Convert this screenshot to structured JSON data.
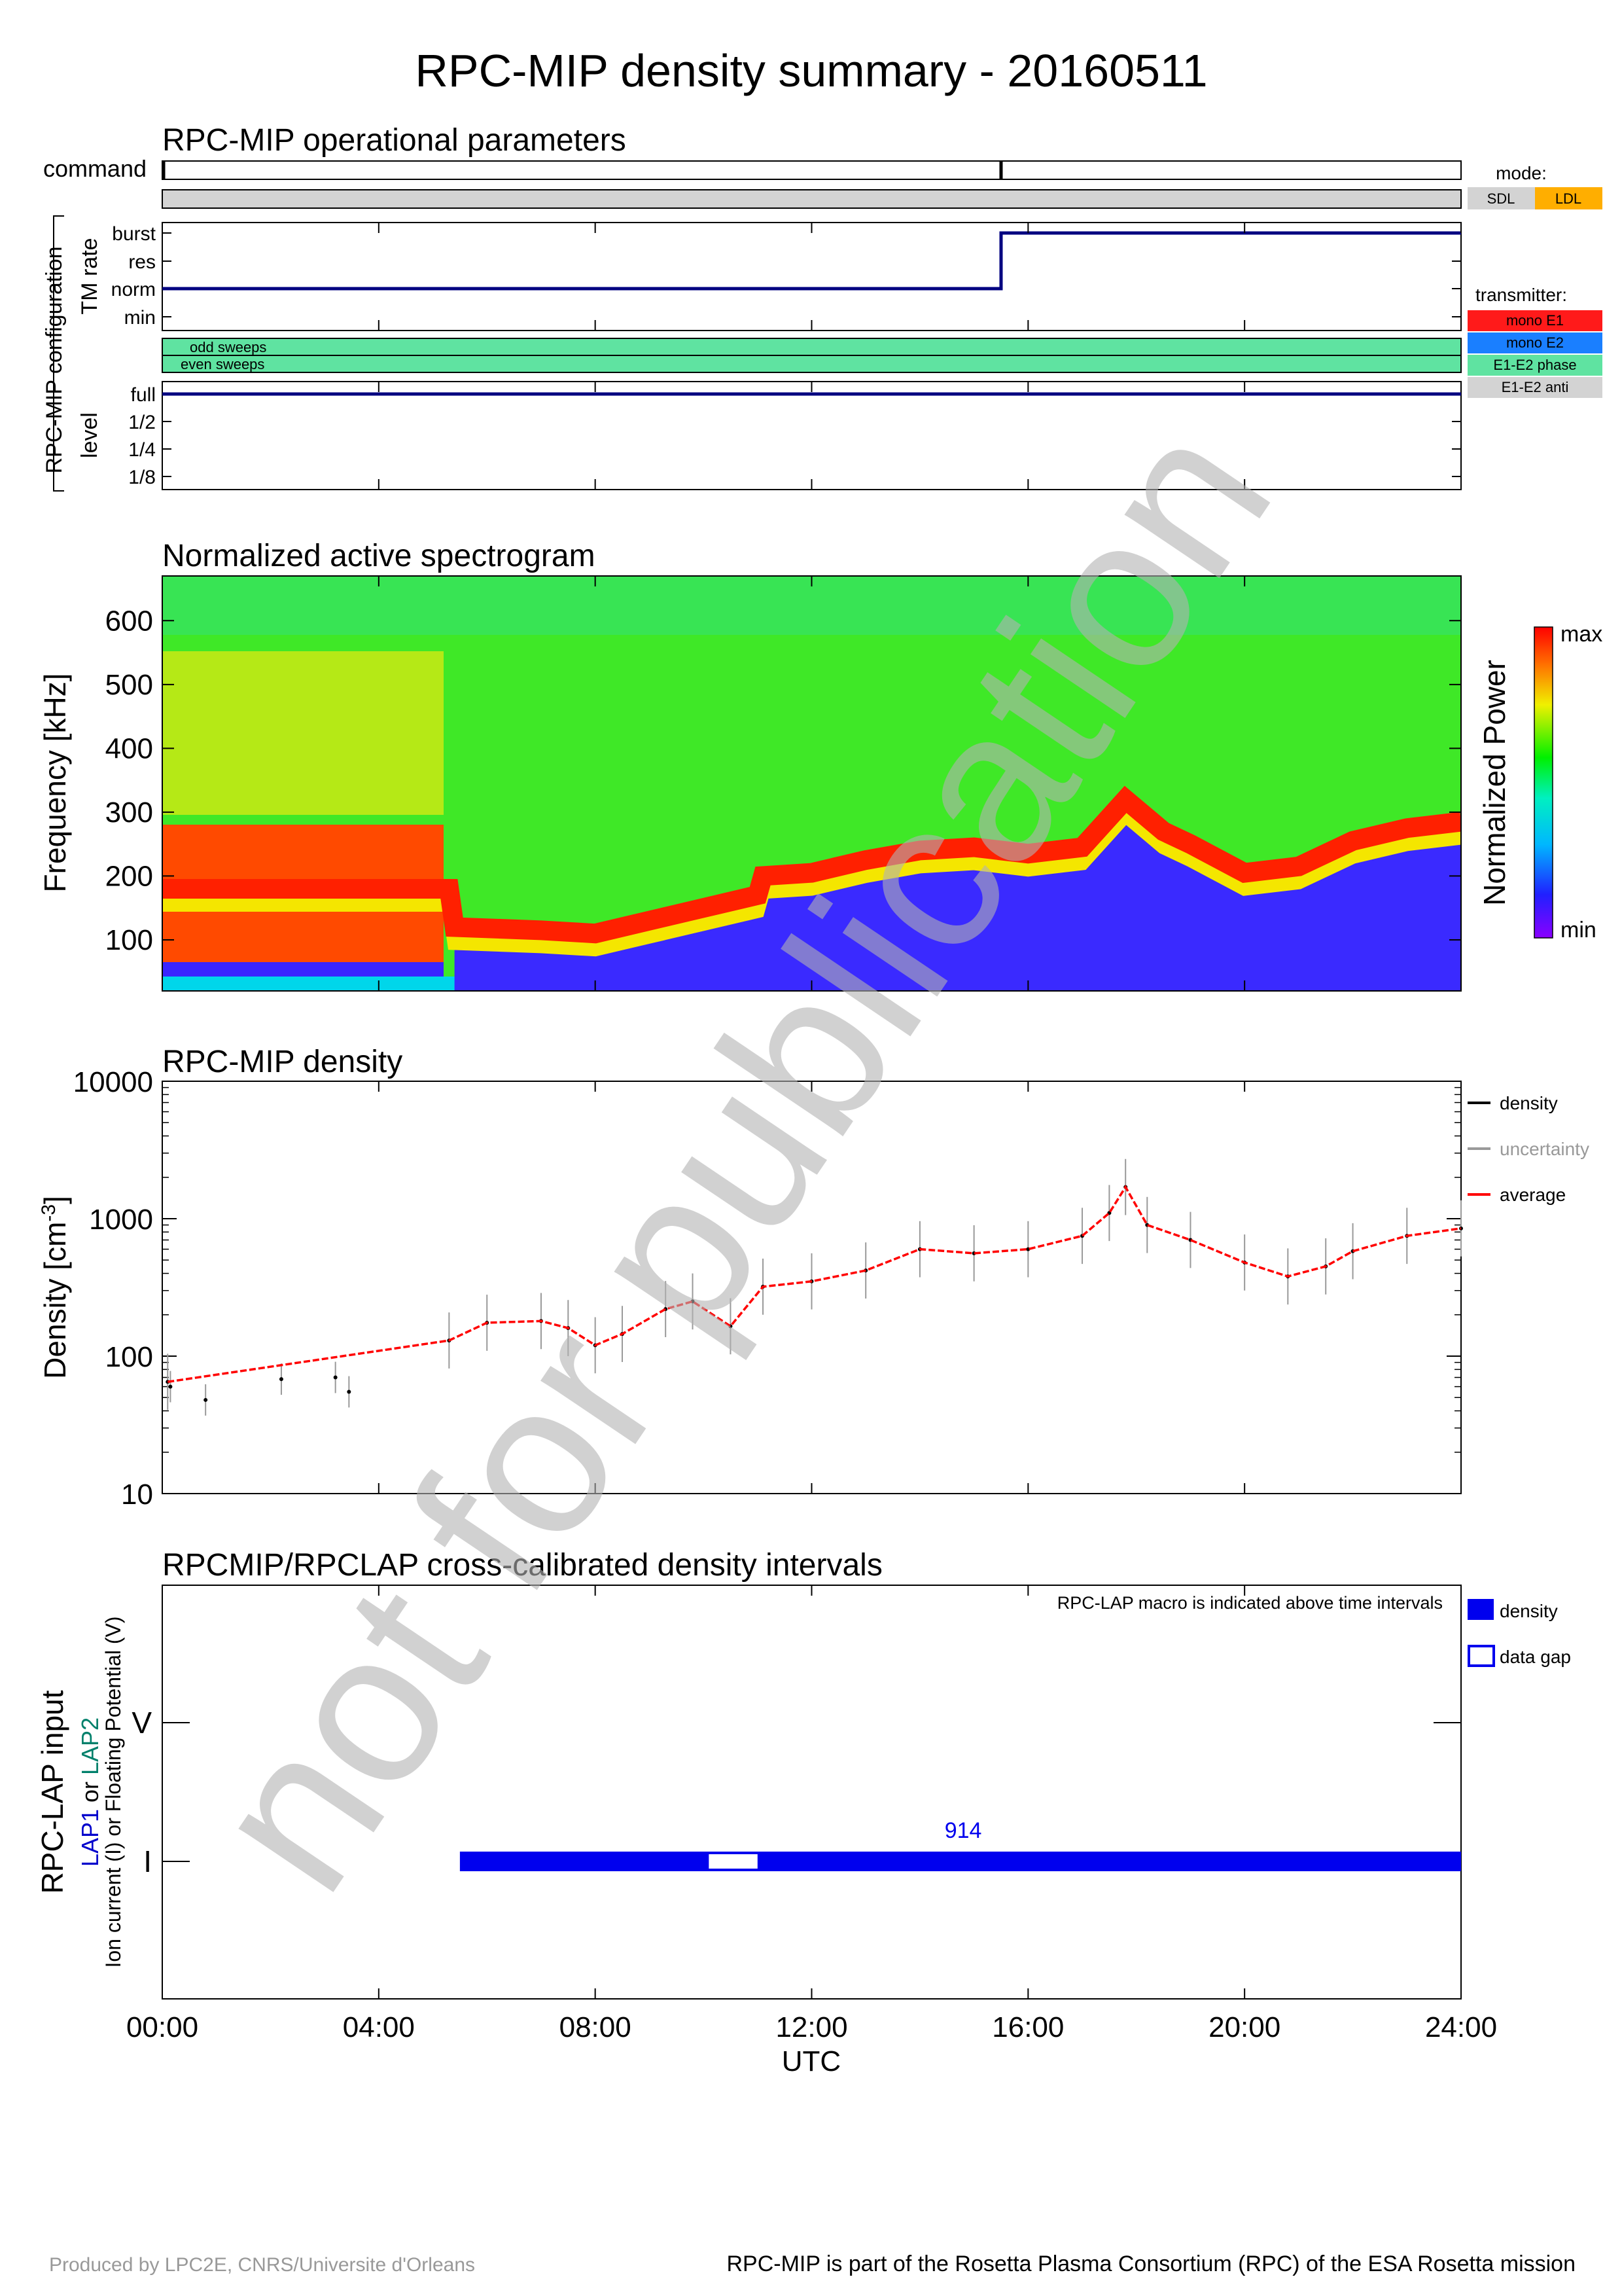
{
  "title": "RPC-MIP density summary - 20160511",
  "footer": {
    "left": "Produced by LPC2E, CNRS/Universite d'Orleans",
    "right": "RPC-MIP is part of the Rosetta Plasma Consortium (RPC) of the ESA Rosetta mission"
  },
  "watermark": "not for publication",
  "x_axis": {
    "ticks": [
      "00:00",
      "04:00",
      "08:00",
      "12:00",
      "16:00",
      "20:00",
      "24:00"
    ],
    "tick_hours": [
      0,
      4,
      8,
      12,
      16,
      20,
      24
    ],
    "label": "UTC",
    "range_hours": [
      0,
      24
    ]
  },
  "ops_panel": {
    "title": "RPC-MIP operational parameters",
    "command_label": "command",
    "command_marks_hours": [
      0,
      15.5
    ],
    "config_label": "RPC-MIP configuration",
    "tm_rate_label": "TM rate",
    "tm_rate_levels": [
      "burst",
      "res",
      "norm",
      "min"
    ],
    "tm_rate_steps": [
      {
        "from": 0,
        "to": 15.5,
        "level": "norm"
      },
      {
        "from": 15.5,
        "to": 24,
        "level": "burst"
      }
    ],
    "sweeps": [
      "odd sweeps",
      "even sweeps"
    ],
    "level_label": "level",
    "level_levels": [
      "full",
      "1/2",
      "1/4",
      "1/8"
    ],
    "level_value": "full",
    "mode_label": "mode:",
    "modes": [
      {
        "label": "SDL",
        "color": "#d3d3d3"
      },
      {
        "label": "LDL",
        "color": "#ffae00"
      }
    ],
    "transmitter_label": "transmitter:",
    "transmitters": [
      {
        "label": "mono E1",
        "color": "#ff1a1a"
      },
      {
        "label": "mono E2",
        "color": "#1a7fff"
      },
      {
        "label": "E1-E2 phase",
        "color": "#5fe3a1"
      },
      {
        "label": "E1-E2 anti",
        "color": "#d3d3d3"
      }
    ],
    "bar_colors": {
      "mode": "#d3d3d3",
      "sweeps": "#5fe3a1",
      "line": "#000080"
    }
  },
  "spectrogram": {
    "title": "Normalized active spectrogram",
    "ylabel": "Frequency [kHz]",
    "yticks": [
      100,
      200,
      300,
      400,
      500,
      600
    ],
    "ylim": [
      20,
      670
    ],
    "colorbar_label": "Normalized Power",
    "colorbar_max": "max",
    "colorbar_min": "min"
  },
  "density_panel": {
    "title": "RPC-MIP density",
    "yticks": [
      "10000",
      "1000",
      "100",
      "10"
    ],
    "legend": [
      {
        "label": "density",
        "color": "#000000"
      },
      {
        "label": "uncertainty",
        "color": "#999999"
      },
      {
        "label": "average",
        "color": "#ff0000"
      }
    ]
  },
  "lap_panel": {
    "title": "RPCMIP/RPCLAP cross-calibrated density intervals",
    "note": "RPC-LAP macro is indicated above time intervals",
    "ylabel_main": "RPC-LAP input",
    "ylabel_lap1": "LAP1",
    "ylabel_or": " or ",
    "ylabel_lap2": "LAP2",
    "ylabel_sub": "Ion current (I) or Floating Potential (V)",
    "ytick_v": "V",
    "ytick_i": "I",
    "macro": "914",
    "legend_density": "density",
    "legend_gap": "data gap",
    "color": "#0000ee"
  },
  "chart_data": [
    {
      "type": "line",
      "title": "RPC-MIP operational parameters",
      "xlabel": "UTC",
      "series": [
        {
          "name": "TM rate",
          "x": [
            0,
            15.5,
            15.5,
            24
          ],
          "y": [
            "norm",
            "norm",
            "burst",
            "burst"
          ]
        },
        {
          "name": "level",
          "x": [
            0,
            24
          ],
          "y": [
            "full",
            "full"
          ]
        }
      ]
    },
    {
      "type": "heatmap",
      "title": "Normalized active spectrogram",
      "xlabel": "UTC",
      "ylabel": "Frequency [kHz]",
      "xlim": [
        0,
        24
      ],
      "ylim": [
        20,
        670
      ],
      "plasma_line_x": [
        0,
        5.3,
        5.4,
        7,
        8,
        9,
        10,
        11,
        11.1,
        12,
        13,
        14,
        15,
        16,
        17,
        17.8,
        18.5,
        19,
        20,
        21,
        22,
        23,
        24
      ],
      "plasma_line_y": [
        180,
        180,
        120,
        115,
        110,
        130,
        150,
        170,
        200,
        205,
        225,
        240,
        245,
        235,
        245,
        320,
        270,
        250,
        205,
        215,
        255,
        275,
        285
      ]
    },
    {
      "type": "scatter",
      "title": "RPC-MIP density",
      "ylabel": "Density [cm-3]",
      "yscale": "log",
      "ylim": [
        10,
        10000
      ],
      "xlim": [
        0,
        24
      ],
      "series": [
        {
          "name": "average",
          "x": [
            0.1,
            5.3,
            6,
            7,
            7.5,
            8,
            8.5,
            9.3,
            9.8,
            10.5,
            11.1,
            12,
            13,
            14,
            15,
            16,
            17,
            17.5,
            17.8,
            18.2,
            19,
            20,
            20.8,
            21.5,
            22,
            23,
            24
          ],
          "y": [
            65,
            130,
            175,
            180,
            160,
            120,
            145,
            220,
            250,
            165,
            320,
            350,
            420,
            600,
            560,
            600,
            750,
            1100,
            1700,
            900,
            700,
            480,
            380,
            450,
            580,
            750,
            850
          ]
        },
        {
          "name": "density",
          "x": [
            0.15,
            0.8,
            2.2,
            3.2,
            3.45
          ],
          "y": [
            60,
            48,
            68,
            70,
            55
          ]
        }
      ]
    },
    {
      "type": "bar",
      "title": "RPCMIP/RPCLAP cross-calibrated density intervals",
      "categories": [
        "I"
      ],
      "intervals": [
        {
          "from": 5.5,
          "to": 24,
          "input": "I",
          "macro": "914"
        }
      ],
      "gaps": [
        {
          "from": 10.1,
          "to": 11.0
        }
      ]
    }
  ]
}
